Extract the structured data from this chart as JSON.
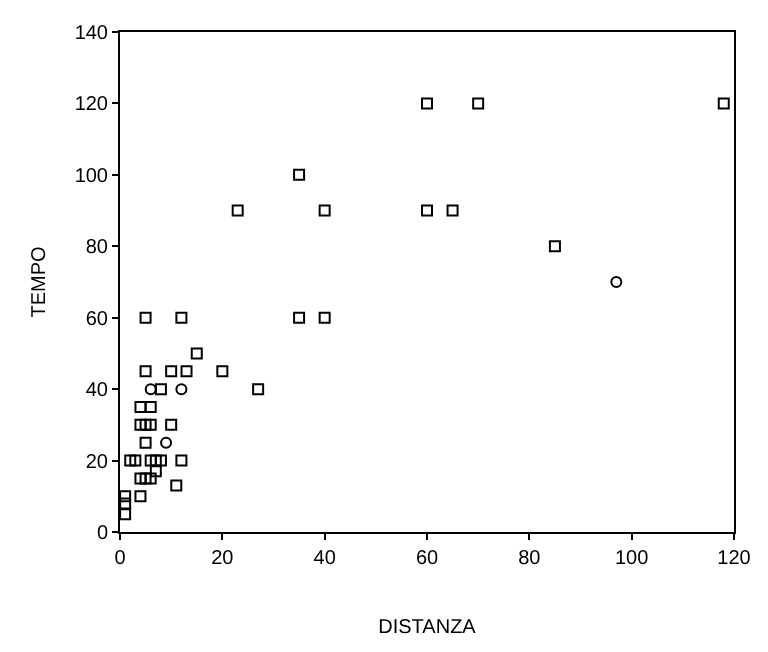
{
  "chart_data": {
    "type": "scatter",
    "xlabel": "DISTANZA",
    "ylabel": "TEMPO",
    "xlim": [
      0,
      120
    ],
    "ylim": [
      0,
      140
    ],
    "xticks": [
      0,
      20,
      40,
      60,
      80,
      100,
      120
    ],
    "yticks": [
      0,
      20,
      40,
      60,
      80,
      100,
      120,
      140
    ],
    "grid": false,
    "series": [
      {
        "color": "#000000",
        "marker": "square",
        "x": [
          5,
          12,
          15,
          5,
          10,
          13,
          20,
          8,
          27,
          4,
          6,
          4,
          5,
          6,
          10,
          5,
          2,
          3,
          6,
          7,
          8,
          12,
          7,
          4,
          5,
          6,
          11,
          4,
          1,
          1,
          1,
          23,
          35,
          40,
          35,
          40,
          60,
          70,
          118,
          60,
          65,
          85
        ],
        "values": [
          60,
          60,
          50,
          45,
          45,
          45,
          45,
          40,
          40,
          35,
          35,
          30,
          30,
          30,
          30,
          25,
          20,
          20,
          20,
          20,
          20,
          20,
          17,
          15,
          15,
          15,
          13,
          10,
          10,
          8,
          5,
          90,
          100,
          90,
          60,
          60,
          120,
          120,
          120,
          90,
          90,
          80
        ]
      },
      {
        "color": "#000000",
        "marker": "circle",
        "x": [
          6,
          12,
          9,
          97
        ],
        "values": [
          40,
          40,
          25,
          70
        ]
      }
    ]
  }
}
